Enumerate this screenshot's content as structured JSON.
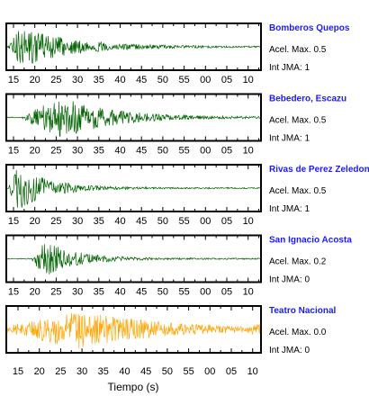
{
  "chart_data": {
    "type": "line",
    "xlabel": "Tiempo (s)",
    "acel_prefix": "Acel. Max.",
    "int_prefix": "Int JMA:",
    "grid": false,
    "panels": [
      {
        "station": "Bomberos Quepos",
        "acel_max": "0.5",
        "int_jma": "1",
        "color": "#006400",
        "tick_labels": [
          "15",
          "20",
          "25",
          "30",
          "35",
          "40",
          "45",
          "50",
          "55",
          "00",
          "05",
          "10"
        ],
        "waveform": {
          "onset_tick": 0,
          "peak_tick": 0.3,
          "peak_amplitude": 0.95,
          "decay": "gradual"
        }
      },
      {
        "station": "Bebedero, Escazu",
        "acel_max": "0.5",
        "int_jma": "1",
        "color": "#006400",
        "tick_labels": [
          "15",
          "20",
          "25",
          "30",
          "35",
          "40",
          "45",
          "50",
          "55",
          "00",
          "05",
          "10"
        ],
        "waveform": {
          "onset_tick": 0.6,
          "peak_tick": 2.2,
          "peak_amplitude": 1.0,
          "decay": "gradual"
        }
      },
      {
        "station": "Rivas de Perez Zeledon",
        "acel_max": "0.5",
        "int_jma": "1",
        "color": "#006400",
        "tick_labels": [
          "15",
          "20",
          "25",
          "30",
          "35",
          "40",
          "45",
          "50",
          "55",
          "00",
          "05",
          "10"
        ],
        "waveform": {
          "onset_tick": 0,
          "peak_tick": 0.2,
          "peak_amplitude": 1.0,
          "decay": "fast"
        }
      },
      {
        "station": "San Ignacio Acosta",
        "acel_max": "0.2",
        "int_jma": "0",
        "color": "#006400",
        "tick_labels": [
          "15",
          "20",
          "25",
          "30",
          "35",
          "40",
          "45",
          "50",
          "55",
          "00",
          "05",
          "10"
        ],
        "waveform": {
          "onset_tick": 1.1,
          "peak_tick": 1.4,
          "peak_amplitude": 0.85,
          "decay": "fast"
        }
      },
      {
        "station": "Teatro Nacional",
        "acel_max": "0.0",
        "int_jma": "0",
        "color": "#FFA500",
        "tick_labels": [
          "15",
          "20",
          "25",
          "30",
          "35",
          "40",
          "45",
          "50",
          "55",
          "00",
          "05",
          "10"
        ],
        "waveform": {
          "onset_tick": 0,
          "peak_tick": 2.8,
          "peak_amplitude": 0.95,
          "decay": "slow"
        }
      }
    ]
  }
}
